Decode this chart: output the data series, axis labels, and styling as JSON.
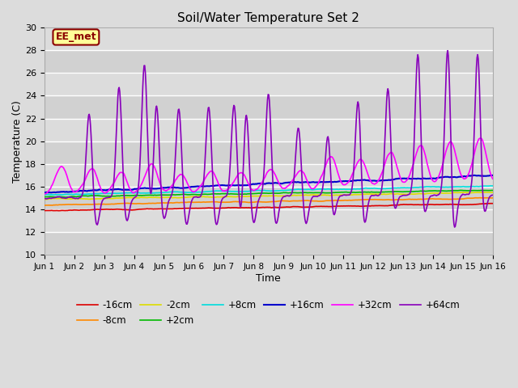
{
  "title": "Soil/Water Temperature Set 2",
  "xlabel": "Time",
  "ylabel": "Temperature (C)",
  "ylim": [
    10,
    30
  ],
  "xlim": [
    0,
    15
  ],
  "xtick_labels": [
    "Jun 1",
    "Jun 2",
    "Jun 3",
    "Jun 4",
    "Jun 5",
    "Jun 6",
    "Jun 7",
    "Jun 8",
    "Jun 9",
    "Jun 10",
    "Jun 11",
    "Jun 12",
    "Jun 13",
    "Jun 14",
    "Jun 15",
    "Jun 16"
  ],
  "ytick_vals": [
    10,
    12,
    14,
    16,
    18,
    20,
    22,
    24,
    26,
    28,
    30
  ],
  "bg_color": "#dcdcdc",
  "plot_bg_color": "#dcdcdc",
  "annotation_text": "EE_met",
  "annotation_bg": "#ffff99",
  "annotation_border": "#8b0000",
  "series": {
    "-16cm": {
      "color": "#dd0000",
      "linewidth": 1.2
    },
    "-8cm": {
      "color": "#ff8800",
      "linewidth": 1.2
    },
    "-2cm": {
      "color": "#dddd00",
      "linewidth": 1.2
    },
    "+2cm": {
      "color": "#00bb00",
      "linewidth": 1.2
    },
    "+8cm": {
      "color": "#00dddd",
      "linewidth": 1.2
    },
    "+16cm": {
      "color": "#0000cc",
      "linewidth": 1.5
    },
    "+32cm": {
      "color": "#ff00ff",
      "linewidth": 1.2
    },
    "+64cm": {
      "color": "#8800bb",
      "linewidth": 1.2
    }
  },
  "legend_order": [
    "-16cm",
    "-8cm",
    "-2cm",
    "+2cm",
    "+8cm",
    "+16cm",
    "+32cm",
    "+64cm"
  ]
}
